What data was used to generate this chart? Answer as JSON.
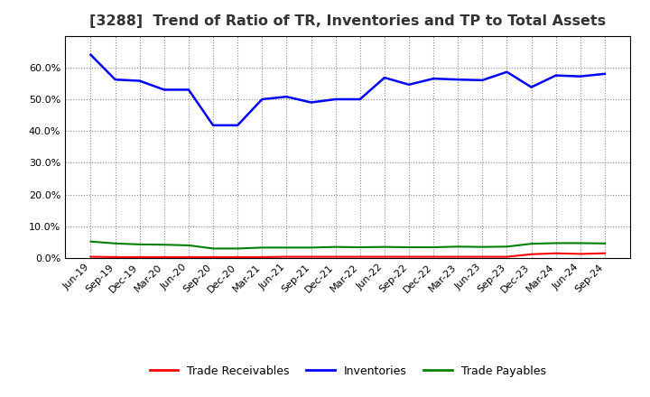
{
  "title": "[3288]  Trend of Ratio of TR, Inventories and TP to Total Assets",
  "x_labels": [
    "Jun-19",
    "Sep-19",
    "Dec-19",
    "Mar-20",
    "Jun-20",
    "Sep-20",
    "Dec-20",
    "Mar-21",
    "Jun-21",
    "Sep-21",
    "Dec-21",
    "Mar-22",
    "Jun-22",
    "Sep-22",
    "Dec-22",
    "Mar-23",
    "Jun-23",
    "Sep-23",
    "Dec-23",
    "Mar-24",
    "Jun-24",
    "Sep-24"
  ],
  "inventories": [
    0.64,
    0.562,
    0.558,
    0.53,
    0.53,
    0.418,
    0.418,
    0.5,
    0.508,
    0.49,
    0.5,
    0.5,
    0.568,
    0.546,
    0.565,
    0.562,
    0.56,
    0.586,
    0.538,
    0.575,
    0.572,
    0.58
  ],
  "trade_receivables": [
    0.004,
    0.003,
    0.003,
    0.003,
    0.003,
    0.003,
    0.003,
    0.003,
    0.004,
    0.004,
    0.004,
    0.004,
    0.004,
    0.004,
    0.004,
    0.004,
    0.004,
    0.004,
    0.012,
    0.015,
    0.013,
    0.015
  ],
  "trade_payables": [
    0.052,
    0.046,
    0.043,
    0.042,
    0.04,
    0.03,
    0.03,
    0.033,
    0.033,
    0.033,
    0.035,
    0.034,
    0.035,
    0.034,
    0.034,
    0.036,
    0.035,
    0.036,
    0.045,
    0.047,
    0.047,
    0.046
  ],
  "line_color_inventories": "#0000FF",
  "line_color_trade_receivables": "#FF0000",
  "line_color_trade_payables": "#008000",
  "ylim": [
    0.0,
    0.7
  ],
  "yticks": [
    0.0,
    0.1,
    0.2,
    0.3,
    0.4,
    0.5,
    0.6
  ],
  "background_color": "#FFFFFF",
  "plot_bg_color": "#FFFFFF",
  "grid_color": "#888888",
  "legend_labels": [
    "Trade Receivables",
    "Inventories",
    "Trade Payables"
  ],
  "title_fontsize": 11.5,
  "tick_fontsize": 8.0,
  "legend_fontsize": 9.0
}
